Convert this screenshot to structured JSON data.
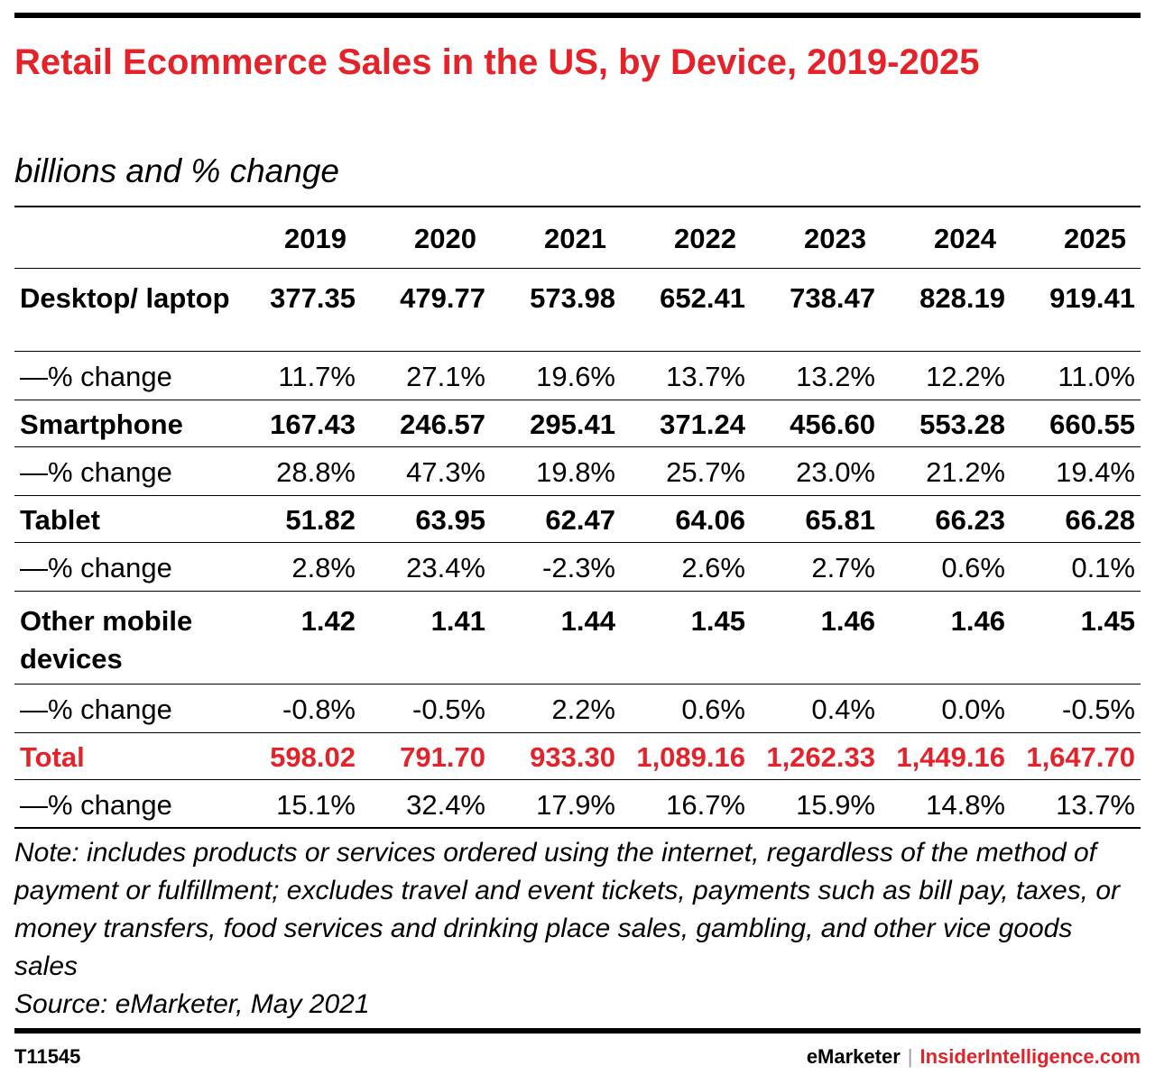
{
  "chart_data": {
    "type": "table",
    "title": "Retail Ecommerce Sales in the US, by Device, 2019-2025",
    "subtitle": "billions and % change",
    "columns": [
      "2019",
      "2020",
      "2021",
      "2022",
      "2023",
      "2024",
      "2025"
    ],
    "rows": [
      {
        "label": "Desktop/ laptop",
        "style": "bold",
        "values": [
          "377.35",
          "479.77",
          "573.98",
          "652.41",
          "738.47",
          "828.19",
          "919.41"
        ]
      },
      {
        "label": "—% change",
        "style": "normal",
        "values": [
          "11.7%",
          "27.1%",
          "19.6%",
          "13.7%",
          "13.2%",
          "12.2%",
          "11.0%"
        ]
      },
      {
        "label": "Smartphone",
        "style": "bold",
        "values": [
          "167.43",
          "246.57",
          "295.41",
          "371.24",
          "456.60",
          "553.28",
          "660.55"
        ]
      },
      {
        "label": "—% change",
        "style": "normal",
        "values": [
          "28.8%",
          "47.3%",
          "19.8%",
          "25.7%",
          "23.0%",
          "21.2%",
          "19.4%"
        ]
      },
      {
        "label": "Tablet",
        "style": "bold",
        "values": [
          "51.82",
          "63.95",
          "62.47",
          "64.06",
          "65.81",
          "66.23",
          "66.28"
        ]
      },
      {
        "label": "—% change",
        "style": "normal",
        "values": [
          "2.8%",
          "23.4%",
          "-2.3%",
          "2.6%",
          "2.7%",
          "0.6%",
          "0.1%"
        ]
      },
      {
        "label": "Other mobile devices",
        "style": "bold",
        "values": [
          "1.42",
          "1.41",
          "1.44",
          "1.45",
          "1.46",
          "1.46",
          "1.45"
        ]
      },
      {
        "label": "—% change",
        "style": "normal",
        "values": [
          "-0.8%",
          "-0.5%",
          "2.2%",
          "0.6%",
          "0.4%",
          "0.0%",
          "-0.5%"
        ]
      },
      {
        "label": "Total",
        "style": "total",
        "values": [
          "598.02",
          "791.70",
          "933.30",
          "1,089.16",
          "1,262.33",
          "1,449.16",
          "1,647.70"
        ]
      },
      {
        "label": "—% change",
        "style": "normal",
        "values": [
          "15.1%",
          "32.4%",
          "17.9%",
          "16.7%",
          "15.9%",
          "14.8%",
          "13.7%"
        ]
      }
    ],
    "note": "Note: includes products or services ordered using the internet, regardless of the method of payment or fulfillment; excludes travel and event tickets, payments such as bill pay, taxes, or money transfers, food services and drinking place sales, gambling, and other vice goods sales",
    "source": "Source: eMarketer, May 2021"
  },
  "footer": {
    "chart_id": "T11545",
    "brand": "eMarketer",
    "separator": "|",
    "brand2": "InsiderIntelligence.com"
  },
  "colors": {
    "accent": "#e4222a",
    "text": "#000000"
  }
}
